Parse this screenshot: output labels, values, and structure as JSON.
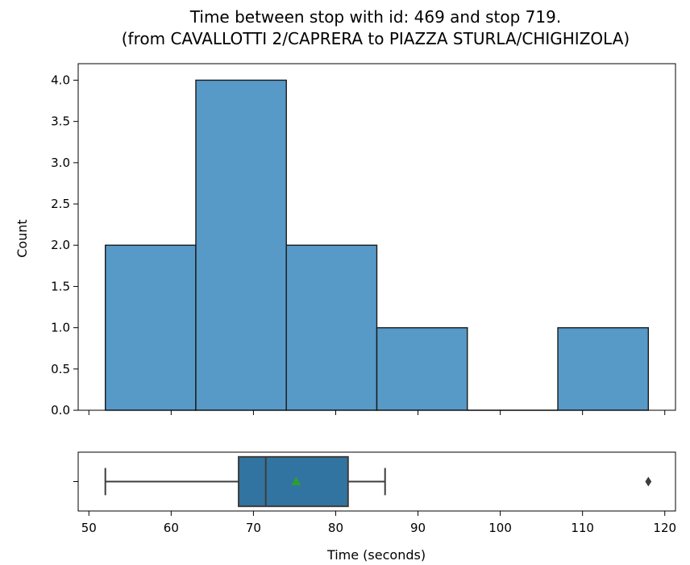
{
  "chart_data": {
    "type": "histogram with boxplot",
    "title": "Time between stop with id: 469 and stop 719.",
    "subtitle": "(from CAVALLOTTI 2/CAPRERA to PIAZZA STURLA/CHIGHIZOLA)",
    "xlabel": "Time (seconds)",
    "ylabel": "Count",
    "xlim": [
      48.7,
      121.3
    ],
    "ylim": [
      0,
      4.2
    ],
    "x_ticks": [
      50,
      60,
      70,
      80,
      90,
      100,
      110,
      120
    ],
    "y_ticks": [
      0.0,
      0.5,
      1.0,
      1.5,
      2.0,
      2.5,
      3.0,
      3.5,
      4.0
    ],
    "y_tick_labels": [
      "0.0",
      "0.5",
      "1.0",
      "1.5",
      "2.0",
      "2.5",
      "3.0",
      "3.5",
      "4.0"
    ],
    "grid": false,
    "histogram": {
      "bin_edges": [
        52,
        63,
        74,
        85,
        96,
        107,
        118
      ],
      "counts": [
        2,
        4,
        2,
        1,
        0,
        1
      ],
      "color": "#5799c7",
      "edge_color": "#1a1a1a"
    },
    "boxplot": {
      "whisker_low": 52,
      "q1": 68.2,
      "median": 71.5,
      "q3": 81.5,
      "whisker_high": 86,
      "mean": 75.2,
      "outliers": [
        118
      ],
      "box_color": "#3274a1",
      "line_color": "#3d3d3d",
      "mean_marker_color": "#2ca02c"
    }
  }
}
